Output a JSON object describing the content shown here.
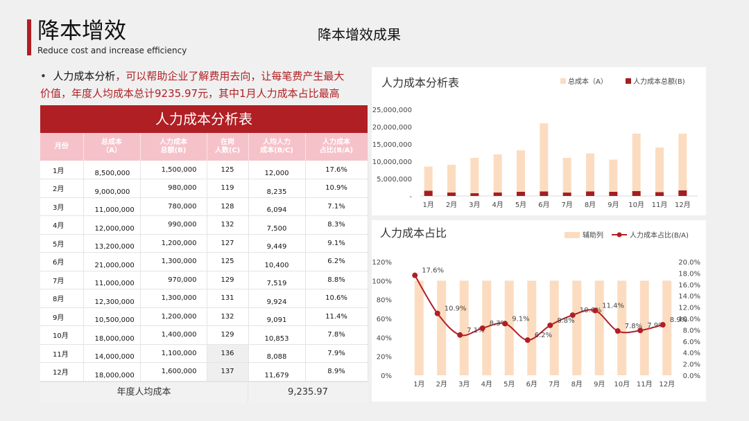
{
  "header": {
    "title": "降本增效",
    "subtitle": "Reduce cost and increase efficiency",
    "center_title": "降本增效成果"
  },
  "description": {
    "bullet": "•",
    "lead": "人力成本分析",
    "rest_line1": "，可以帮助企业了解费用去向，让每笔费产生最大",
    "rest_line2": "价值，年度人均成本总计9235.97元，其中1月人力成本占比最高"
  },
  "table": {
    "title": "人力成本分析表",
    "headers": [
      "月份",
      "总成本\n（A）",
      "人力成本\n总额(B)",
      "在岗\n人数(C)",
      "人均人力\n成本(B/C)",
      "人力成本\n占比(B/A)"
    ],
    "rows": [
      {
        "month": "1月",
        "total": "8,500,000",
        "hr": "1,500,000",
        "count": "125",
        "avg": "12,000",
        "pct": "17.6%"
      },
      {
        "month": "2月",
        "total": "9,000,000",
        "hr": "980,000",
        "count": "119",
        "avg": "8,235",
        "pct": "10.9%"
      },
      {
        "month": "3月",
        "total": "11,000,000",
        "hr": "780,000",
        "count": "128",
        "avg": "6,094",
        "pct": "7.1%"
      },
      {
        "month": "4月",
        "total": "12,000,000",
        "hr": "990,000",
        "count": "132",
        "avg": "7,500",
        "pct": "8.3%"
      },
      {
        "month": "5月",
        "total": "13,200,000",
        "hr": "1,200,000",
        "count": "127",
        "avg": "9,449",
        "pct": "9.1%"
      },
      {
        "month": "6月",
        "total": "21,000,000",
        "hr": "1,300,000",
        "count": "125",
        "avg": "10,400",
        "pct": "6.2%"
      },
      {
        "month": "7月",
        "total": "11,000,000",
        "hr": "970,000",
        "count": "129",
        "avg": "7,519",
        "pct": "8.8%"
      },
      {
        "month": "8月",
        "total": "12,300,000",
        "hr": "1,300,000",
        "count": "131",
        "avg": "9,924",
        "pct": "10.6%"
      },
      {
        "month": "9月",
        "total": "10,500,000",
        "hr": "1,200,000",
        "count": "132",
        "avg": "9,091",
        "pct": "11.4%"
      },
      {
        "month": "10月",
        "total": "18,000,000",
        "hr": "1,400,000",
        "count": "129",
        "avg": "10,853",
        "pct": "7.8%"
      },
      {
        "month": "11月",
        "total": "14,000,000",
        "hr": "1,100,000",
        "count": "136",
        "avg": "8,088",
        "pct": "7.9%"
      },
      {
        "month": "12月",
        "total": "18,000,000",
        "hr": "1,600,000",
        "count": "137",
        "avg": "11,679",
        "pct": "8.9%"
      }
    ],
    "footer_label": "年度人均成本",
    "footer_value": "9,235.97"
  },
  "colors": {
    "accent": "#b01f24",
    "header_pink": "#f6c2c9",
    "peach": "#fcdcc0",
    "line": "#b01f24"
  },
  "chart_data": [
    {
      "type": "bar",
      "title": "人力成本分析表",
      "categories": [
        "1月",
        "2月",
        "3月",
        "4月",
        "5月",
        "6月",
        "7月",
        "8月",
        "9月",
        "10月",
        "11月",
        "12月"
      ],
      "series": [
        {
          "name": "总成本（A）",
          "values": [
            8500000,
            9000000,
            11000000,
            12000000,
            13200000,
            21000000,
            11000000,
            12300000,
            10500000,
            18000000,
            14000000,
            18000000
          ]
        },
        {
          "name": "人力成本总额(B)",
          "values": [
            1500000,
            980000,
            780000,
            990000,
            1200000,
            1300000,
            970000,
            1300000,
            1200000,
            1400000,
            1100000,
            1600000
          ]
        }
      ],
      "y_ticks": [
        "25,000,000",
        "20,000,000",
        "15,000,000",
        "10,000,000",
        "5,000,000",
        "-"
      ],
      "ylim": [
        0,
        25000000
      ],
      "legend": "top-right",
      "grid": false
    },
    {
      "type": "bar",
      "title": "人力成本占比",
      "categories": [
        "1月",
        "2月",
        "3月",
        "4月",
        "5月",
        "6月",
        "7月",
        "8月",
        "9月",
        "10月",
        "11月",
        "12月"
      ],
      "series": [
        {
          "name": "辅助列",
          "type": "bar",
          "axis": "left",
          "values": [
            1,
            1,
            1,
            1,
            1,
            1,
            1,
            1,
            1,
            1,
            1,
            1
          ]
        },
        {
          "name": "人力成本占比(B/A)",
          "type": "line",
          "axis": "right",
          "values": [
            0.176,
            0.109,
            0.071,
            0.083,
            0.091,
            0.062,
            0.088,
            0.106,
            0.114,
            0.078,
            0.079,
            0.089
          ],
          "labels": [
            "17.6%",
            "10.9%",
            "7.1%",
            "8.3%",
            "9.1%",
            "6.2%",
            "8.8%",
            "10.6%",
            "11.4%",
            "7.8%",
            "7.9%",
            "8.9%"
          ]
        }
      ],
      "left_ticks": [
        "120%",
        "100%",
        "80%",
        "60%",
        "40%",
        "20%",
        "0%"
      ],
      "right_ticks": [
        "20.0%",
        "18.0%",
        "16.0%",
        "14.0%",
        "12.0%",
        "10.0%",
        "8.0%",
        "6.0%",
        "4.0%",
        "2.0%",
        "0.0%"
      ],
      "ylim_left": [
        0,
        1.2
      ],
      "ylim_right": [
        0,
        0.2
      ],
      "legend": "top-right",
      "grid": false
    }
  ]
}
